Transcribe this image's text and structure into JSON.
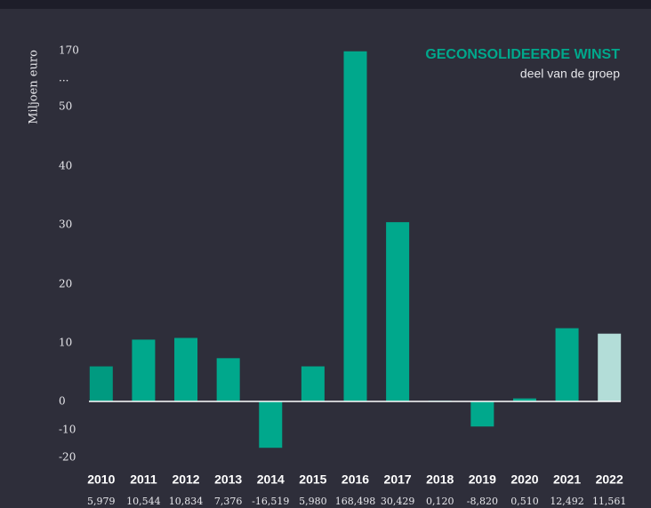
{
  "chart_data": {
    "type": "bar",
    "title": "GECONSOLIDEERDE WINST",
    "subtitle": "deel van de groep",
    "y_label": "Miljoen euro",
    "axis_break": "...",
    "categories": [
      "2010",
      "2011",
      "2012",
      "2013",
      "2014",
      "2015",
      "2016",
      "2017",
      "2018",
      "2019",
      "2020",
      "2021",
      "2022"
    ],
    "values": [
      5.979,
      10.544,
      10.834,
      7.376,
      -16.519,
      5.98,
      168.498,
      30.429,
      0.12,
      -8.82,
      0.51,
      12.492,
      11.561
    ],
    "value_labels": [
      "5,979",
      "10,544",
      "10,834",
      "7,376",
      "-16,519",
      "5,980",
      "168,498",
      "30,429",
      "0,120",
      "-8,820",
      "0,510",
      "12,492",
      "11,561"
    ],
    "colors": [
      "#009a80",
      "#00a88c",
      "#00a88c",
      "#00a88c",
      "#00a88c",
      "#00a88c",
      "#00a88c",
      "#00a88c",
      "#00a88c",
      "#00a88c",
      "#00a88c",
      "#00a88c",
      "#b3ddd8"
    ],
    "ylim": [
      -20,
      170
    ],
    "yticks": [
      -20,
      -10,
      0,
      10,
      20,
      30,
      40,
      50,
      170
    ]
  }
}
